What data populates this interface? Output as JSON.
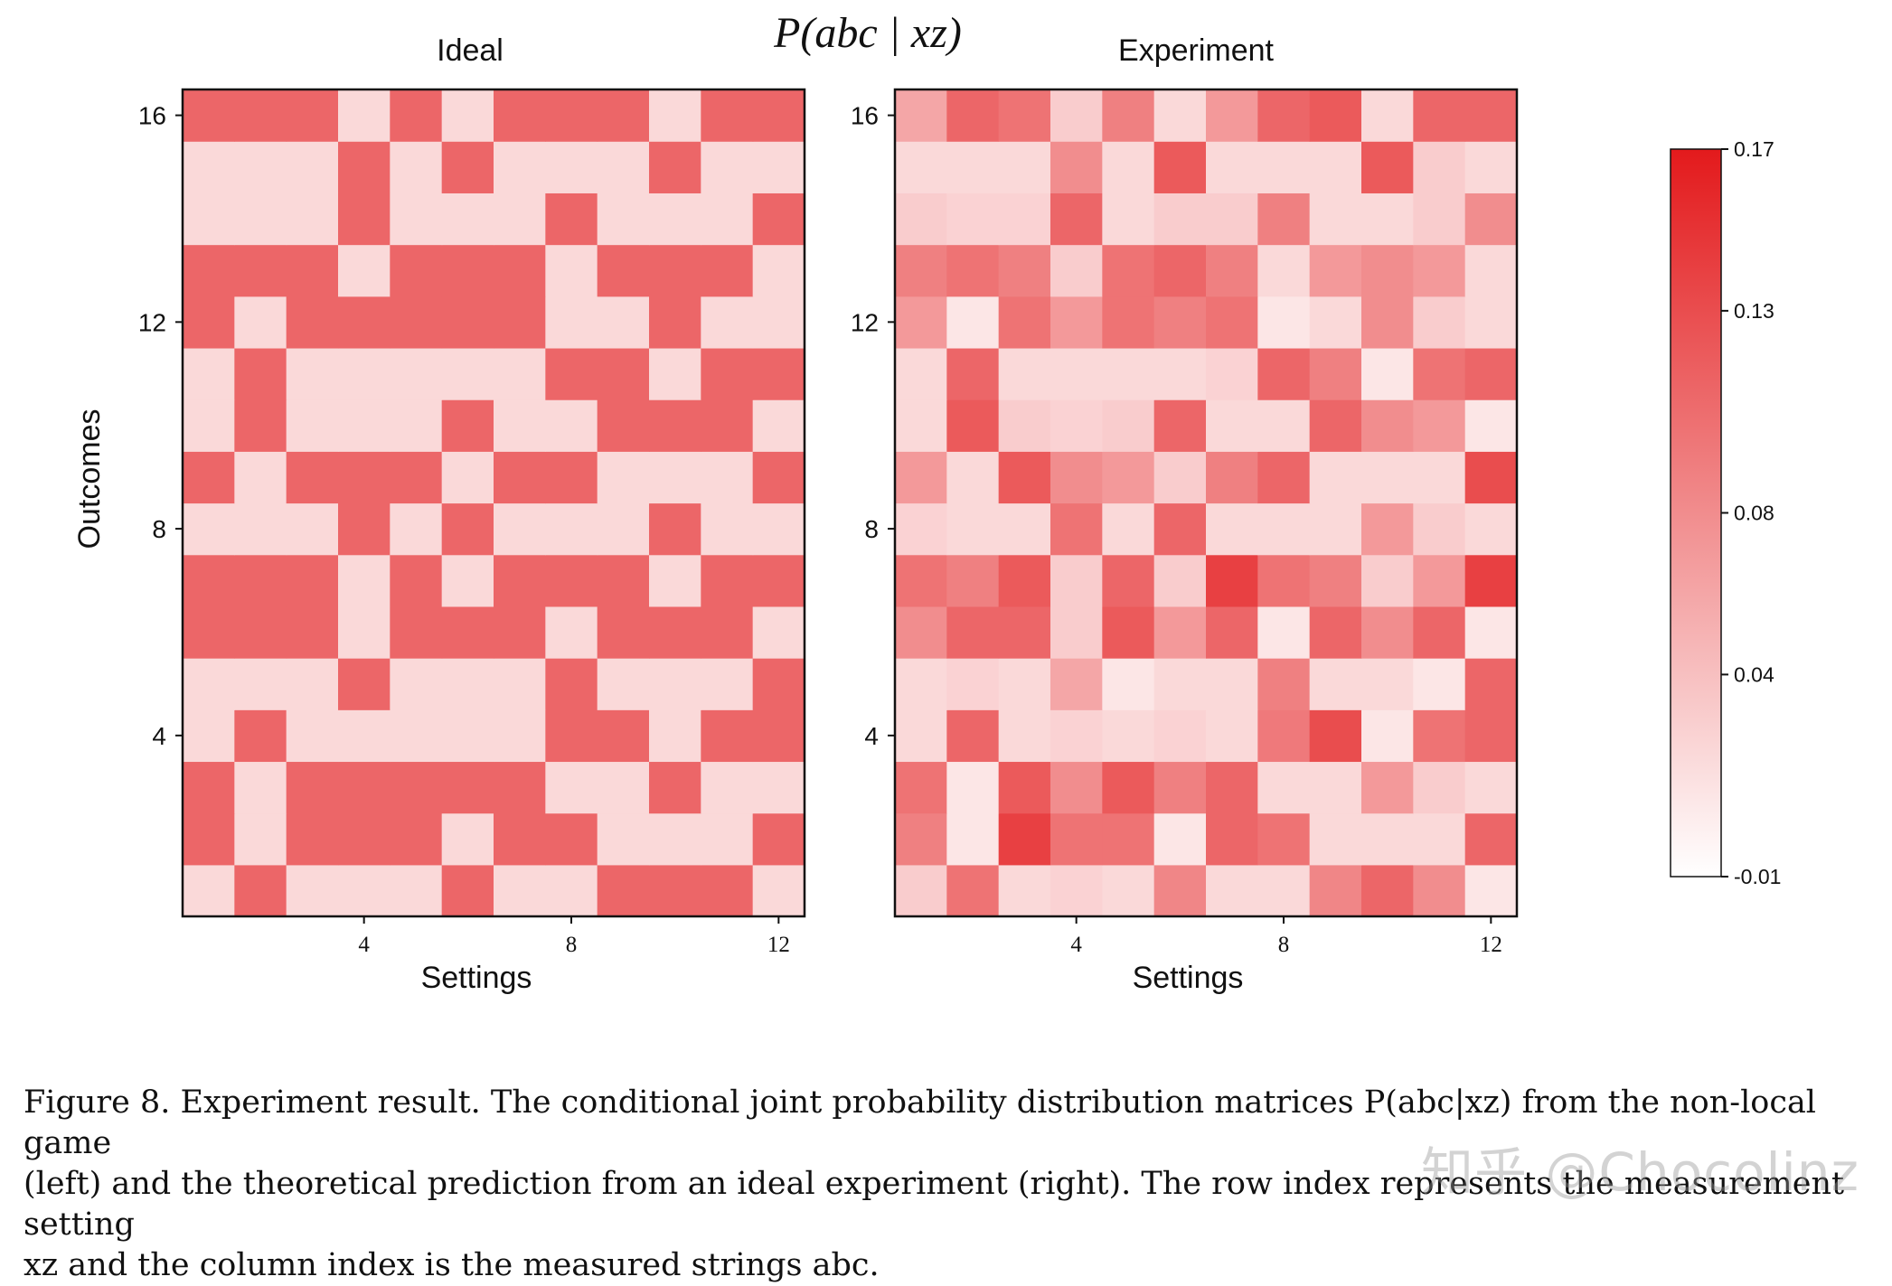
{
  "figure": {
    "main_title": "P(abc | xz)",
    "watermark": "知乎 @Chocolinz"
  },
  "caption": {
    "lines": [
      "Figure 8. Experiment result. The conditional joint probability distribution matrices P(abc|xz) from the non-local game",
      "(left) and the theoretical prediction from an ideal experiment (right). The row index represents the measurement setting",
      "xz and the column index is the measured strings abc."
    ]
  },
  "chart_data": [
    {
      "type": "heatmap",
      "title": "Ideal",
      "xlabel": "Settings",
      "ylabel": "Outcomes",
      "x_ticks": [
        4,
        8,
        12
      ],
      "y_ticks": [
        4,
        8,
        12,
        16
      ],
      "x_range": [
        1,
        12
      ],
      "y_range": [
        1,
        16
      ],
      "z": [
        [
          0.02,
          0.11,
          0.02,
          0.02,
          0.02,
          0.11,
          0.02,
          0.02,
          0.11,
          0.11,
          0.11,
          0.02
        ],
        [
          0.11,
          0.02,
          0.11,
          0.11,
          0.11,
          0.02,
          0.11,
          0.11,
          0.02,
          0.02,
          0.02,
          0.11
        ],
        [
          0.11,
          0.02,
          0.11,
          0.11,
          0.11,
          0.11,
          0.11,
          0.02,
          0.02,
          0.11,
          0.02,
          0.02
        ],
        [
          0.02,
          0.11,
          0.02,
          0.02,
          0.02,
          0.02,
          0.02,
          0.11,
          0.11,
          0.02,
          0.11,
          0.11
        ],
        [
          0.02,
          0.02,
          0.02,
          0.11,
          0.02,
          0.02,
          0.02,
          0.11,
          0.02,
          0.02,
          0.02,
          0.11
        ],
        [
          0.11,
          0.11,
          0.11,
          0.02,
          0.11,
          0.11,
          0.11,
          0.02,
          0.11,
          0.11,
          0.11,
          0.02
        ],
        [
          0.11,
          0.11,
          0.11,
          0.02,
          0.11,
          0.02,
          0.11,
          0.11,
          0.11,
          0.02,
          0.11,
          0.11
        ],
        [
          0.02,
          0.02,
          0.02,
          0.11,
          0.02,
          0.11,
          0.02,
          0.02,
          0.02,
          0.11,
          0.02,
          0.02
        ],
        [
          0.11,
          0.02,
          0.11,
          0.11,
          0.11,
          0.02,
          0.11,
          0.11,
          0.02,
          0.02,
          0.02,
          0.11
        ],
        [
          0.02,
          0.11,
          0.02,
          0.02,
          0.02,
          0.11,
          0.02,
          0.02,
          0.11,
          0.11,
          0.11,
          0.02
        ],
        [
          0.02,
          0.11,
          0.02,
          0.02,
          0.02,
          0.02,
          0.02,
          0.11,
          0.11,
          0.02,
          0.11,
          0.11
        ],
        [
          0.11,
          0.02,
          0.11,
          0.11,
          0.11,
          0.11,
          0.11,
          0.02,
          0.02,
          0.11,
          0.02,
          0.02
        ],
        [
          0.11,
          0.11,
          0.11,
          0.02,
          0.11,
          0.11,
          0.11,
          0.02,
          0.11,
          0.11,
          0.11,
          0.02
        ],
        [
          0.02,
          0.02,
          0.02,
          0.11,
          0.02,
          0.02,
          0.02,
          0.11,
          0.02,
          0.02,
          0.02,
          0.11
        ],
        [
          0.02,
          0.02,
          0.02,
          0.11,
          0.02,
          0.11,
          0.02,
          0.02,
          0.02,
          0.11,
          0.02,
          0.02
        ],
        [
          0.11,
          0.11,
          0.11,
          0.02,
          0.11,
          0.02,
          0.11,
          0.11,
          0.11,
          0.02,
          0.11,
          0.11
        ]
      ]
    },
    {
      "type": "heatmap",
      "title": "Experiment",
      "xlabel": "Settings",
      "ylabel": "",
      "x_ticks": [
        4,
        8,
        12
      ],
      "y_ticks": [
        4,
        8,
        12,
        16
      ],
      "x_range": [
        1,
        12
      ],
      "y_range": [
        1,
        16
      ],
      "z": [
        [
          0.03,
          0.1,
          0.02,
          0.025,
          0.02,
          0.085,
          0.02,
          0.02,
          0.085,
          0.11,
          0.08,
          0.01
        ],
        [
          0.09,
          0.01,
          0.14,
          0.1,
          0.1,
          0.01,
          0.11,
          0.1,
          0.02,
          0.02,
          0.02,
          0.11
        ],
        [
          0.1,
          0.01,
          0.12,
          0.08,
          0.12,
          0.09,
          0.11,
          0.02,
          0.02,
          0.07,
          0.03,
          0.02
        ],
        [
          0.02,
          0.11,
          0.02,
          0.025,
          0.02,
          0.025,
          0.02,
          0.095,
          0.13,
          0.01,
          0.1,
          0.11
        ],
        [
          0.02,
          0.025,
          0.02,
          0.06,
          0.01,
          0.02,
          0.02,
          0.09,
          0.02,
          0.02,
          0.01,
          0.11
        ],
        [
          0.08,
          0.11,
          0.11,
          0.03,
          0.12,
          0.07,
          0.11,
          0.01,
          0.11,
          0.08,
          0.11,
          0.01
        ],
        [
          0.1,
          0.09,
          0.12,
          0.03,
          0.11,
          0.03,
          0.14,
          0.1,
          0.09,
          0.03,
          0.07,
          0.14
        ],
        [
          0.025,
          0.02,
          0.02,
          0.1,
          0.02,
          0.11,
          0.02,
          0.02,
          0.02,
          0.07,
          0.03,
          0.02
        ],
        [
          0.07,
          0.02,
          0.12,
          0.08,
          0.07,
          0.03,
          0.09,
          0.11,
          0.02,
          0.02,
          0.02,
          0.13
        ],
        [
          0.02,
          0.12,
          0.03,
          0.025,
          0.03,
          0.11,
          0.02,
          0.02,
          0.11,
          0.08,
          0.07,
          0.01
        ],
        [
          0.02,
          0.11,
          0.02,
          0.02,
          0.02,
          0.02,
          0.025,
          0.11,
          0.09,
          0.01,
          0.1,
          0.11
        ],
        [
          0.07,
          0.01,
          0.1,
          0.07,
          0.1,
          0.09,
          0.1,
          0.01,
          0.02,
          0.08,
          0.03,
          0.02
        ],
        [
          0.09,
          0.1,
          0.09,
          0.03,
          0.1,
          0.11,
          0.09,
          0.02,
          0.07,
          0.08,
          0.07,
          0.02
        ],
        [
          0.03,
          0.025,
          0.025,
          0.11,
          0.02,
          0.03,
          0.03,
          0.09,
          0.02,
          0.02,
          0.03,
          0.08
        ],
        [
          0.02,
          0.02,
          0.02,
          0.08,
          0.02,
          0.12,
          0.02,
          0.02,
          0.02,
          0.12,
          0.03,
          0.02
        ],
        [
          0.06,
          0.11,
          0.1,
          0.03,
          0.09,
          0.02,
          0.07,
          0.11,
          0.12,
          0.02,
          0.11,
          0.11
        ]
      ]
    }
  ],
  "colorbar": {
    "min": -0.01,
    "max": 0.17,
    "tick_labels": [
      "0.17",
      "0.13",
      "0.08",
      "0.04",
      "-0.01"
    ],
    "tick_values": [
      0.17,
      0.13,
      0.08,
      0.04,
      -0.01
    ],
    "colormap": {
      "low": "#ffffff",
      "high": "#e31a1c"
    }
  }
}
